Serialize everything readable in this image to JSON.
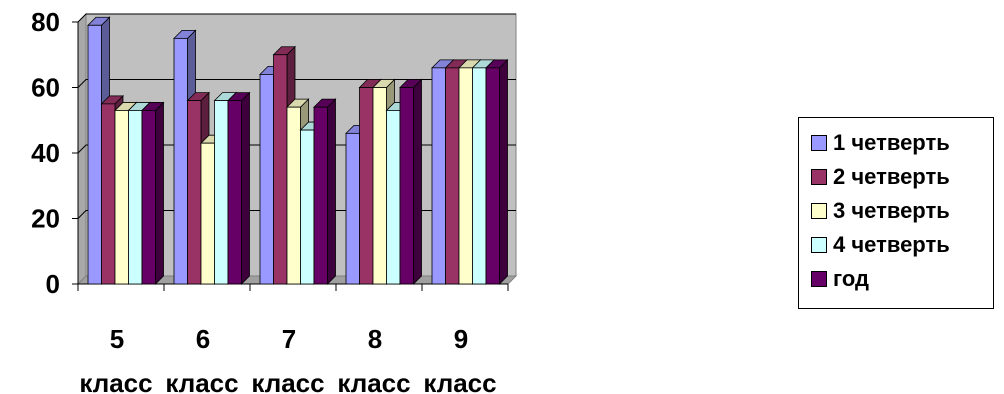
{
  "chart_data": {
    "type": "bar",
    "categories": [
      "5 класс",
      "6 класс",
      "7 класс",
      "8 класс",
      "9 класс"
    ],
    "category_numbers": [
      "5",
      "6",
      "7",
      "8",
      "9"
    ],
    "category_words": [
      "класс",
      "класс",
      "класс",
      "класс",
      "класс"
    ],
    "series": [
      {
        "name": "1 четверть",
        "color": "#9999ff",
        "values": [
          79,
          75,
          64,
          46,
          66
        ]
      },
      {
        "name": "2 четверть",
        "color": "#993366",
        "values": [
          55,
          56,
          70,
          60,
          66
        ]
      },
      {
        "name": "3 четверть",
        "color": "#ffffcc",
        "values": [
          53,
          43,
          54,
          60,
          66
        ]
      },
      {
        "name": "4 четверть",
        "color": "#ccffff",
        "values": [
          53,
          56,
          47,
          53,
          66
        ]
      },
      {
        "name": "год",
        "color": "#660066",
        "values": [
          53,
          56,
          54,
          60,
          66
        ]
      }
    ],
    "y_ticks": [
      "0",
      "20",
      "40",
      "60",
      "80"
    ],
    "ylim": [
      0,
      80
    ],
    "grid": true,
    "plot_background": "#c0c0c0",
    "legend_position": "right",
    "title": "",
    "xlabel": "",
    "ylabel": ""
  }
}
